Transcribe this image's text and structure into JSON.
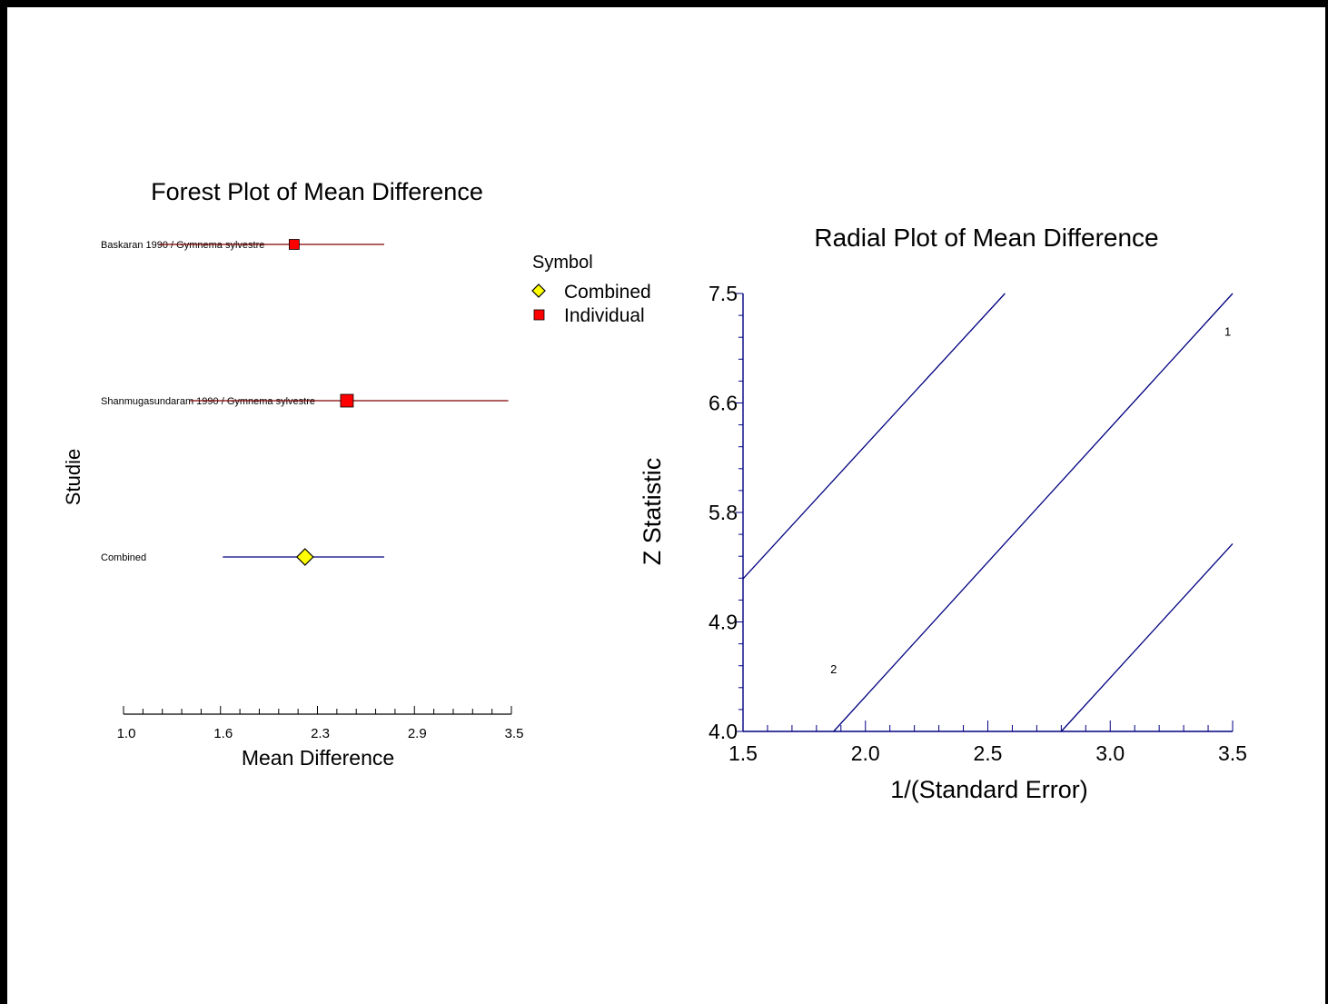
{
  "chart_data": [
    {
      "type": "forest",
      "title": "Forest Plot of Mean Difference",
      "xlabel": "Mean Difference",
      "ylabel": "Studie",
      "xlim": [
        1.0,
        3.5
      ],
      "xticks": [
        "1.0",
        "1.6",
        "2.3",
        "2.9",
        "3.5"
      ],
      "legend": {
        "title": "Symbol",
        "placement": "right",
        "items": [
          {
            "label": "Combined",
            "symbol": "diamond",
            "color": "#ffff00"
          },
          {
            "label": "Individual",
            "symbol": "square",
            "color": "#ff0000"
          }
        ]
      },
      "rows": [
        {
          "label": "Baskaran 1990 / Gymnema sylvestre",
          "estimate": 2.1,
          "lower": 1.23,
          "upper": 2.68,
          "kind": "individual"
        },
        {
          "label": "Shanmugasundaram 1990 / Gymnema sylvestre",
          "estimate": 2.44,
          "lower": 1.43,
          "upper": 3.48,
          "kind": "individual"
        },
        {
          "label": "Combined",
          "estimate": 2.17,
          "lower": 1.64,
          "upper": 2.68,
          "kind": "combined"
        }
      ],
      "colors": {
        "individual_line": "#800000",
        "combined_line": "#000080",
        "individual_fill": "#ff0000",
        "combined_fill": "#ffff00"
      }
    },
    {
      "type": "scatter",
      "title": "Radial Plot of Mean Difference",
      "xlabel": "1/(Standard Error)",
      "ylabel": "Z Statistic",
      "xlim": [
        1.5,
        3.5
      ],
      "ylim": [
        4.0,
        7.5
      ],
      "xticks": [
        "1.5",
        "2.0",
        "2.5",
        "3.0",
        "3.5"
      ],
      "yticks": [
        "4.0",
        "4.9",
        "5.8",
        "6.6",
        "7.5"
      ],
      "points": [
        {
          "label": "1",
          "x": 3.48,
          "y": 7.2
        },
        {
          "label": "2",
          "x": 1.87,
          "y": 4.5
        }
      ],
      "lines": [
        {
          "name": "upper",
          "from": [
            1.5,
            5.22
          ],
          "to": [
            2.57,
            7.5
          ]
        },
        {
          "name": "center",
          "from": [
            1.87,
            4.0
          ],
          "to": [
            3.5,
            7.5
          ]
        },
        {
          "name": "lower",
          "from": [
            2.8,
            4.0
          ],
          "to": [
            3.5,
            5.5
          ]
        }
      ],
      "color": "#000080"
    }
  ]
}
